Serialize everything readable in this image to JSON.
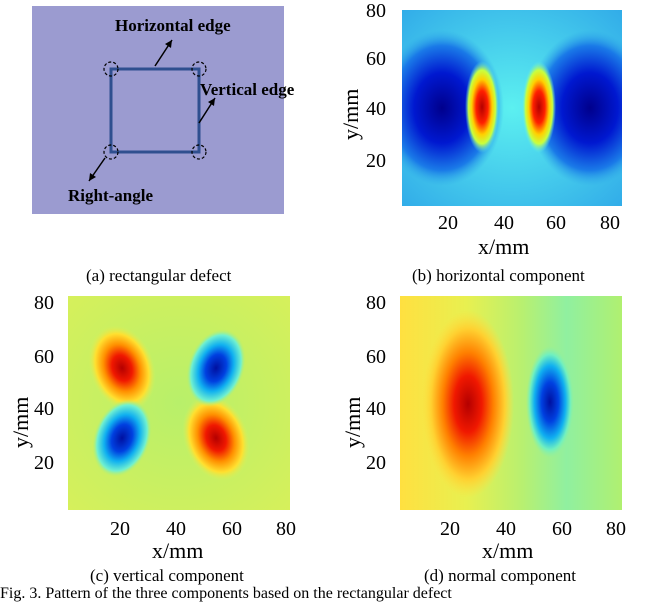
{
  "panels": {
    "a": {
      "caption": "(a) rectangular defect",
      "annotations": {
        "horizontal_edge": "Horizontal edge",
        "vertical_edge": "Vertical edge",
        "right_angle": "Right-angle"
      },
      "colors": {
        "background": "#9b9bd0",
        "outline": "#2f4f8f"
      }
    },
    "b": {
      "caption": "(b) horizontal component"
    },
    "c": {
      "caption": "(c) vertical component"
    },
    "d": {
      "caption": "(d) normal component"
    }
  },
  "axes": {
    "xlabel": "x/mm",
    "ylabel": "y/mm",
    "xticks": [
      "20",
      "40",
      "60",
      "80"
    ],
    "yticks": [
      "80",
      "60",
      "40",
      "20"
    ]
  },
  "figure_caption": "Fig. 3. Pattern of the three components based on the rectangular defect"
}
